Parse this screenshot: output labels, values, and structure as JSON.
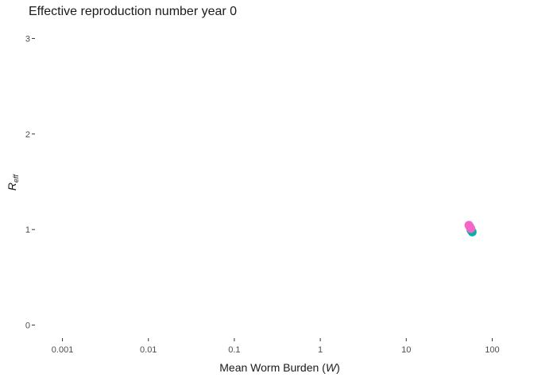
{
  "chart_data": {
    "type": "scatter",
    "title": "Effective reproduction number year 0",
    "xlabel_main": "Mean Worm Burden (",
    "xlabel_symbol": "W",
    "xlabel_close": ")",
    "ylabel_main": "R",
    "ylabel_sub": "eff",
    "x_scale": "log10",
    "xlim": [
      0.0005,
      200
    ],
    "ylim": [
      -0.12,
      3.12
    ],
    "x_ticks": [
      {
        "value": 0.001,
        "label": "0.001"
      },
      {
        "value": 0.01,
        "label": "0.01"
      },
      {
        "value": 0.1,
        "label": "0.1"
      },
      {
        "value": 1,
        "label": "1"
      },
      {
        "value": 10,
        "label": "10"
      },
      {
        "value": 100,
        "label": "100"
      }
    ],
    "y_ticks": [
      {
        "value": 0,
        "label": "0"
      },
      {
        "value": 1,
        "label": "1"
      },
      {
        "value": 2,
        "label": "2"
      },
      {
        "value": 3,
        "label": "3"
      }
    ],
    "grid": false,
    "legend": "none",
    "series": [
      {
        "color": "#00b3a6",
        "points": [
          {
            "x": 58.5,
            "y": 0.975
          },
          {
            "x": 57.5,
            "y": 0.985
          },
          {
            "x": 56.5,
            "y": 0.995
          }
        ]
      },
      {
        "color": "#f564c8",
        "points": [
          {
            "x": 53.5,
            "y": 1.045
          },
          {
            "x": 54.5,
            "y": 1.035
          },
          {
            "x": 55.5,
            "y": 1.02
          },
          {
            "x": 56.5,
            "y": 1.01
          }
        ]
      }
    ]
  }
}
